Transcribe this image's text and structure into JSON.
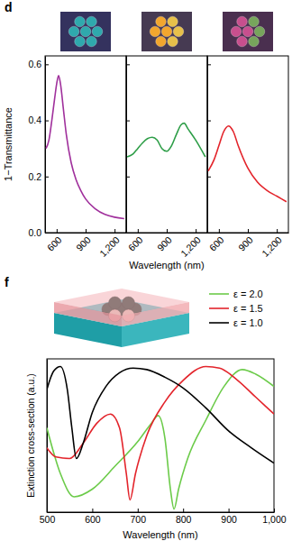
{
  "chart_data": [
    {
      "type": "line",
      "title": "d",
      "y_label": "1−Transmittance",
      "x": [
        490,
        520,
        550,
        580,
        600,
        620,
        640,
        670,
        700,
        750,
        800,
        850,
        900,
        1000,
        1100,
        1200,
        1300
      ],
      "values": [
        0.3,
        0.33,
        0.4,
        0.48,
        0.53,
        0.56,
        0.53,
        0.44,
        0.35,
        0.25,
        0.19,
        0.15,
        0.12,
        0.085,
        0.065,
        0.055,
        0.05
      ],
      "color": "#a0309c",
      "xlim": [
        480,
        1320
      ],
      "xticks": [
        600,
        900,
        {
          "value": 1200,
          "label": "1,200"
        }
      ],
      "ylim": [
        0,
        0.63
      ],
      "yticks": [
        {
          "value": 0,
          "label": "0.0"
        },
        0.2,
        0.4,
        0.6
      ]
    },
    {
      "type": "line",
      "x_label": "Wavelength (nm)",
      "x": [
        490,
        550,
        600,
        650,
        700,
        750,
        800,
        850,
        900,
        950,
        1000,
        1050,
        1080,
        1120,
        1200,
        1300
      ],
      "values": [
        0.27,
        0.28,
        0.3,
        0.32,
        0.335,
        0.34,
        0.33,
        0.3,
        0.29,
        0.31,
        0.35,
        0.385,
        0.39,
        0.37,
        0.33,
        0.27
      ],
      "color": "#2e9e48",
      "xlim": [
        480,
        1320
      ],
      "xticks": [
        600,
        900,
        {
          "value": 1200,
          "label": "1,200"
        }
      ],
      "ylim": [
        0,
        0.63
      ],
      "yticks": [
        0,
        0.2,
        0.4,
        0.6
      ],
      "tick_labels": "x"
    },
    {
      "type": "line",
      "x": [
        490,
        550,
        600,
        650,
        700,
        750,
        800,
        900,
        1000,
        1100,
        1200,
        1300
      ],
      "values": [
        0.22,
        0.26,
        0.31,
        0.36,
        0.38,
        0.36,
        0.31,
        0.23,
        0.18,
        0.15,
        0.13,
        0.11
      ],
      "color": "#e3242b",
      "xlim": [
        480,
        1320
      ],
      "xticks": [
        600,
        900,
        {
          "value": 1200,
          "label": "1,200"
        }
      ],
      "ylim": [
        0,
        0.63
      ],
      "yticks": [
        0,
        0.2,
        0.4,
        0.6
      ],
      "tick_labels": "x"
    },
    {
      "type": "line",
      "title": "f",
      "x_label": "Wavelength (nm)",
      "y_label": "Extinction cross-section (a.u.)",
      "xlim": [
        500,
        1000
      ],
      "xticks": [
        500,
        600,
        700,
        800,
        900,
        {
          "value": 1000,
          "label": "1,000"
        }
      ],
      "ylim": [
        0,
        1
      ],
      "tick_labels": "x",
      "legend": "top right",
      "series": [
        {
          "name": "ε = 2.0",
          "color": "#6ccb4a",
          "x": [
            500,
            530,
            560,
            600,
            650,
            700,
            730,
            745,
            760,
            772,
            780,
            790,
            810,
            850,
            890,
            930,
            960,
            1000
          ],
          "values": [
            0.55,
            0.25,
            0.1,
            0.15,
            0.3,
            0.46,
            0.58,
            0.63,
            0.48,
            0.15,
            0.02,
            0.15,
            0.35,
            0.6,
            0.82,
            0.93,
            0.9,
            0.82
          ]
        },
        {
          "name": "ε = 1.5",
          "color": "#e3242b",
          "x": [
            500,
            520,
            550,
            580,
            610,
            640,
            660,
            675,
            683,
            695,
            720,
            760,
            800,
            850,
            880,
            920,
            960,
            1000
          ],
          "values": [
            0.42,
            0.36,
            0.35,
            0.45,
            0.58,
            0.64,
            0.55,
            0.25,
            0.08,
            0.25,
            0.5,
            0.72,
            0.86,
            0.95,
            0.94,
            0.86,
            0.75,
            0.64
          ]
        },
        {
          "name": "ε = 1.0",
          "color": "#000000",
          "x": [
            500,
            515,
            530,
            545,
            555,
            565,
            580,
            600,
            630,
            660,
            690,
            720,
            760,
            800,
            850,
            900,
            950,
            1000
          ],
          "values": [
            0.8,
            0.92,
            0.95,
            0.8,
            0.55,
            0.35,
            0.45,
            0.65,
            0.82,
            0.91,
            0.94,
            0.93,
            0.88,
            0.81,
            0.68,
            0.53,
            0.42,
            0.32
          ]
        }
      ]
    }
  ]
}
